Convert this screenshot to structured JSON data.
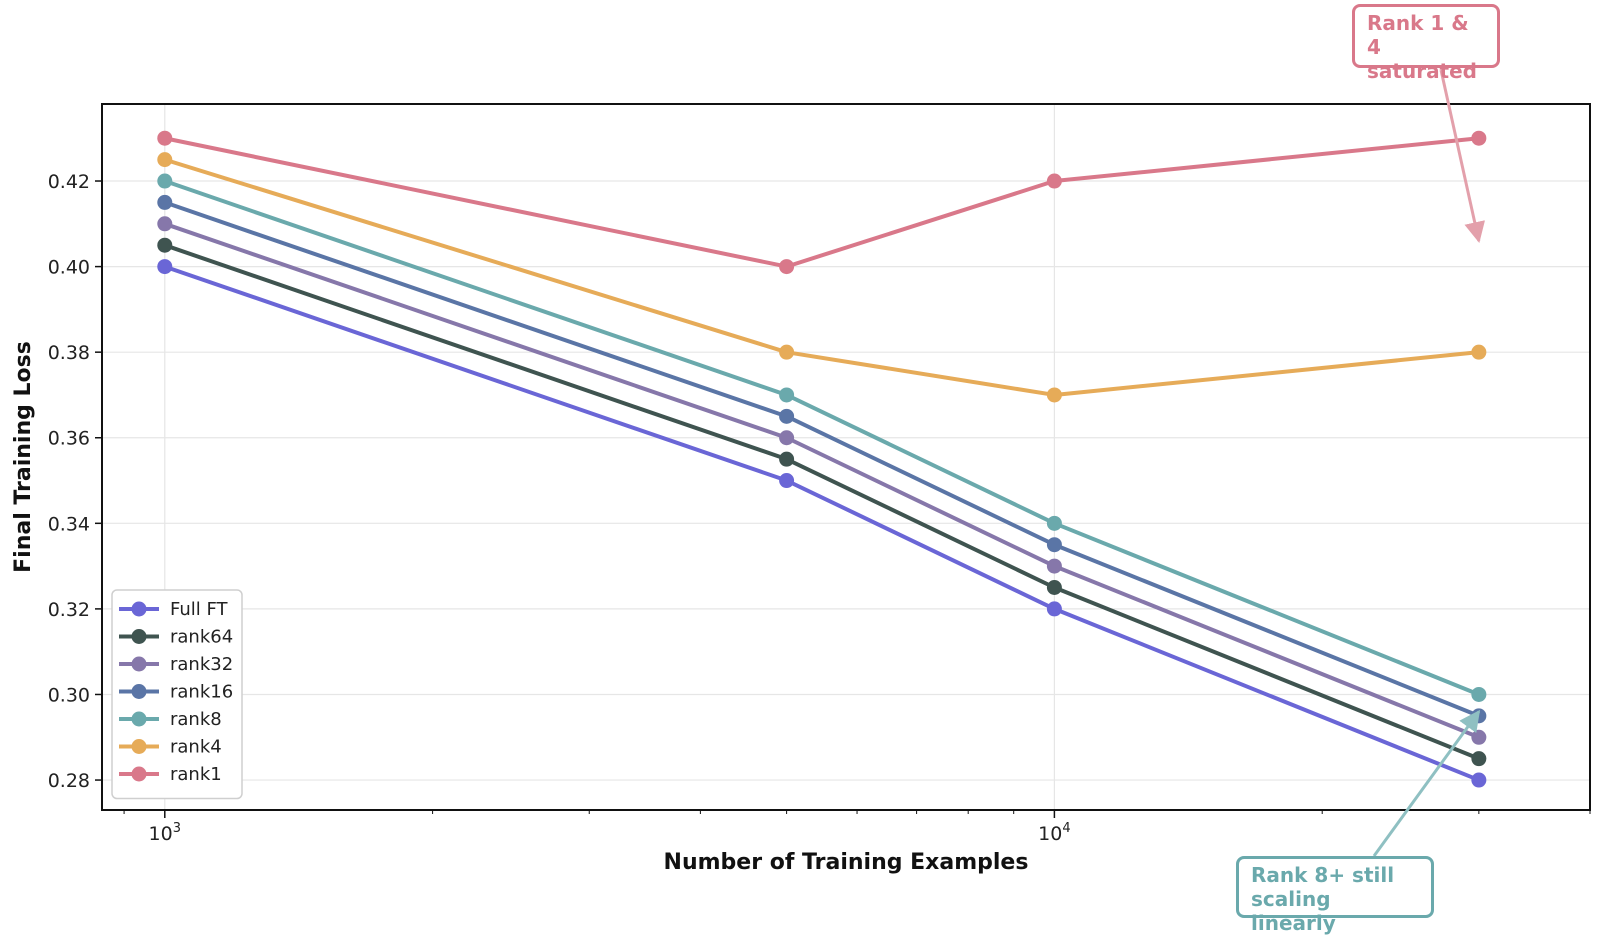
{
  "chart_data": {
    "type": "line",
    "xscale": "log",
    "xlabel": "Number of Training Examples",
    "ylabel": "Final Training Loss",
    "x": [
      1000,
      5000,
      10000,
      30000
    ],
    "xlim": [
      850,
      40000
    ],
    "ylim": [
      0.273,
      0.438
    ],
    "xticks": [
      {
        "value": 1000,
        "base": "10",
        "exp": "3"
      },
      {
        "value": 10000,
        "base": "10",
        "exp": "4"
      }
    ],
    "yticks": [
      0.28,
      0.3,
      0.32,
      0.34,
      0.36,
      0.38,
      0.4,
      0.42
    ],
    "ytick_labels": [
      "0.28",
      "0.30",
      "0.32",
      "0.34",
      "0.36",
      "0.38",
      "0.40",
      "0.42"
    ],
    "grid": true,
    "legend_position": "lower-left",
    "series": [
      {
        "name": "Full FT",
        "color": "#6a66d6",
        "values": [
          0.4,
          0.35,
          0.32,
          0.28
        ]
      },
      {
        "name": "rank64",
        "color": "#3f5450",
        "values": [
          0.405,
          0.355,
          0.325,
          0.285
        ]
      },
      {
        "name": "rank32",
        "color": "#8677aa",
        "values": [
          0.41,
          0.36,
          0.33,
          0.29
        ]
      },
      {
        "name": "rank16",
        "color": "#5a75a6",
        "values": [
          0.415,
          0.365,
          0.335,
          0.295
        ]
      },
      {
        "name": "rank8",
        "color": "#6aa9ac",
        "values": [
          0.42,
          0.37,
          0.34,
          0.3
        ]
      },
      {
        "name": "rank4",
        "color": "#e6ab58",
        "values": [
          0.425,
          0.38,
          0.37,
          0.38
        ]
      },
      {
        "name": "rank1",
        "color": "#d9788a",
        "values": [
          0.43,
          0.4,
          0.42,
          0.43
        ]
      }
    ],
    "annotations": [
      {
        "id": "saturated",
        "text": "Rank 1 & 4\nsaturated",
        "color": "#d9788a",
        "target": {
          "x": 30000,
          "y": 0.406
        }
      },
      {
        "id": "scaling",
        "text": "Rank 8+ still\nscaling linearly",
        "color": "#6aa9ac",
        "target": {
          "x": 30000,
          "y": 0.296
        }
      }
    ]
  }
}
